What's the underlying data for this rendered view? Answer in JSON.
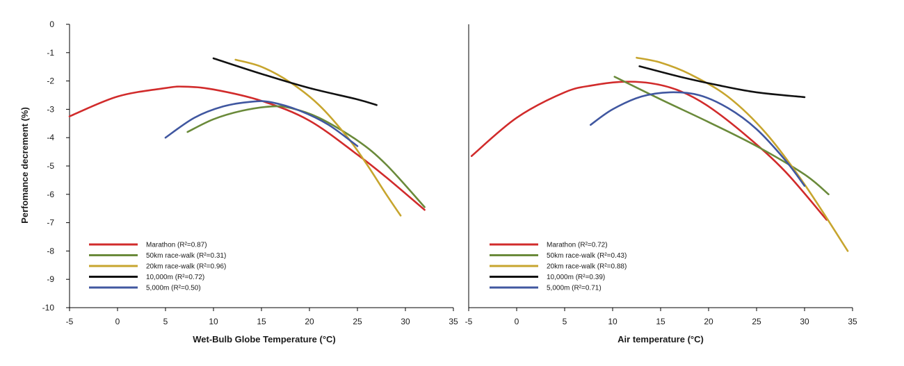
{
  "y_axis_label": "Perfomance decrement (%)",
  "chart_data": [
    {
      "type": "line",
      "xlabel": "Wet-Bulb Globe Temperature (°C)",
      "ylabel": "Perfomance decrement (%)",
      "xlim": [
        -5,
        35
      ],
      "ylim": [
        -10,
        0
      ],
      "xticks": [
        -5,
        0,
        5,
        10,
        15,
        20,
        25,
        30,
        35
      ],
      "yticks": [
        0,
        -1,
        -2,
        -3,
        -4,
        -5,
        -6,
        -7,
        -8,
        -9,
        -10
      ],
      "grid": false,
      "legend_position": "bottom-left",
      "series": [
        {
          "name": "Marathon (R²=0.87)",
          "color": "#d12b2b",
          "x": [
            -5,
            0,
            5,
            7,
            10,
            15,
            20,
            25,
            28,
            32
          ],
          "y": [
            -3.25,
            -2.55,
            -2.25,
            -2.2,
            -2.3,
            -2.7,
            -3.4,
            -4.6,
            -5.4,
            -6.55
          ]
        },
        {
          "name": "50km race-walk (R²=0.31)",
          "color": "#6a8a3a",
          "x": [
            7.3,
            10,
            13,
            16,
            18,
            21,
            25,
            28,
            32
          ],
          "y": [
            -3.8,
            -3.35,
            -3.05,
            -2.9,
            -2.95,
            -3.3,
            -4.1,
            -4.95,
            -6.45
          ]
        },
        {
          "name": "20km race-walk (R²=0.96)",
          "color": "#c7a52e",
          "x": [
            12.3,
            15,
            18,
            21,
            24,
            26,
            28,
            29.5
          ],
          "y": [
            -1.25,
            -1.5,
            -2.05,
            -2.85,
            -4.0,
            -4.95,
            -6.0,
            -6.75
          ]
        },
        {
          "name": "10,000m (R²=0.72)",
          "color": "#111111",
          "x": [
            10,
            15,
            20,
            25,
            27
          ],
          "y": [
            -1.2,
            -1.75,
            -2.25,
            -2.65,
            -2.85
          ]
        },
        {
          "name": "5,000m (R²=0.50)",
          "color": "#4057a0",
          "x": [
            5,
            8,
            11,
            14,
            16,
            19,
            22,
            25
          ],
          "y": [
            -4.0,
            -3.3,
            -2.9,
            -2.73,
            -2.75,
            -3.05,
            -3.55,
            -4.3
          ]
        }
      ]
    },
    {
      "type": "line",
      "xlabel": "Air temperature (°C)",
      "ylabel": "",
      "xlim": [
        -5,
        35
      ],
      "ylim": [
        -10,
        0
      ],
      "xticks": [
        -5,
        0,
        5,
        10,
        15,
        20,
        25,
        30,
        35
      ],
      "yticks": [],
      "grid": false,
      "legend_position": "bottom-left",
      "series": [
        {
          "name": "Marathon (R²=0.72)",
          "color": "#d12b2b",
          "x": [
            -4.7,
            0,
            5,
            8,
            11,
            14,
            17,
            20,
            24,
            28,
            32.3
          ],
          "y": [
            -4.65,
            -3.3,
            -2.4,
            -2.15,
            -2.03,
            -2.08,
            -2.35,
            -2.9,
            -3.95,
            -5.2,
            -6.9
          ]
        },
        {
          "name": "50km race-walk (R²=0.43)",
          "color": "#6a8a3a",
          "x": [
            10.2,
            15,
            20,
            25,
            30,
            32.5
          ],
          "y": [
            -1.85,
            -2.65,
            -3.45,
            -4.3,
            -5.3,
            -6.0
          ]
        },
        {
          "name": "20km race-walk (R²=0.88)",
          "color": "#c7a52e",
          "x": [
            12.5,
            15,
            18,
            22,
            26,
            30,
            34.5
          ],
          "y": [
            -1.18,
            -1.35,
            -1.75,
            -2.55,
            -3.85,
            -5.65,
            -8.0
          ]
        },
        {
          "name": "10,000m (R²=0.39)",
          "color": "#111111",
          "x": [
            12.8,
            17,
            21,
            25,
            30
          ],
          "y": [
            -1.48,
            -1.85,
            -2.15,
            -2.4,
            -2.57
          ]
        },
        {
          "name": "5,000m (R²=0.71)",
          "color": "#4057a0",
          "x": [
            7.7,
            10,
            13,
            16,
            19,
            22,
            25,
            28,
            30
          ],
          "y": [
            -3.55,
            -3.0,
            -2.55,
            -2.4,
            -2.5,
            -2.95,
            -3.7,
            -4.8,
            -5.7
          ]
        }
      ]
    }
  ]
}
